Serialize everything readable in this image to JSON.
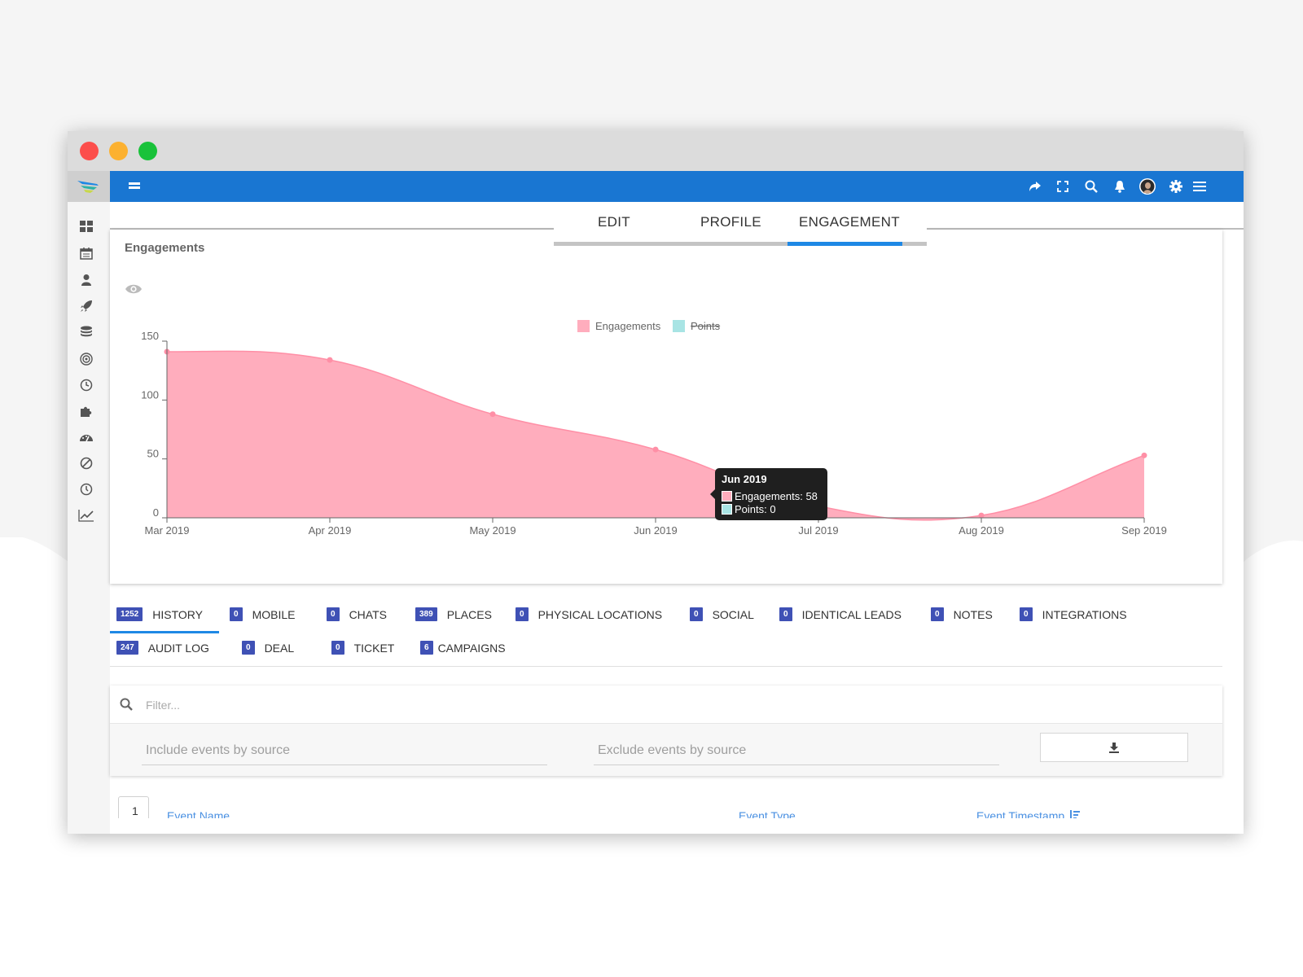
{
  "window": {
    "controls": [
      "close",
      "minimize",
      "maximize"
    ]
  },
  "colors": {
    "topbar": "#1976d2",
    "accent": "#1e88e5",
    "badge": "#3f51b5",
    "engagements": "#ffadbd",
    "engagements_line": "#ff8fa6",
    "points": "#a8e4e4"
  },
  "sidebar": {
    "logo_icon": "mautic-logo-icon",
    "items": [
      "dashboard-icon",
      "calendar-icon",
      "contacts-icon",
      "campaigns-rocket-icon",
      "stack-icon",
      "target-icon",
      "clock-icon",
      "plugins-puzzle-icon",
      "gauge-icon",
      "ban-icon",
      "history-icon",
      "chart-line-icon"
    ]
  },
  "topbar": {
    "menu_icon": "hamburger-icon",
    "right_icons": [
      "share-icon",
      "fullscreen-icon",
      "search-icon",
      "bell-icon",
      "avatar",
      "gear-icon",
      "menu-icon"
    ]
  },
  "tabs": [
    {
      "label": "EDIT"
    },
    {
      "label": "PROFILE"
    },
    {
      "label": "ENGAGEMENT",
      "active": true
    }
  ],
  "chart_card": {
    "title": "Engagements",
    "toggle_icon": "eye-icon"
  },
  "chart_data": {
    "type": "area",
    "title": "",
    "x": [
      "Mar 2019",
      "Apr 2019",
      "May 2019",
      "Jun 2019",
      "Jul 2019",
      "Aug 2019",
      "Sep 2019"
    ],
    "series": [
      {
        "name": "Engagements",
        "values": [
          141,
          134,
          88,
          58,
          10,
          2,
          53
        ],
        "visible": true
      },
      {
        "name": "Points",
        "values": [
          0,
          0,
          0,
          0,
          0,
          0,
          0
        ],
        "visible": false
      }
    ],
    "yticks": [
      0,
      50,
      100,
      150
    ],
    "ylim": [
      0,
      150
    ],
    "legend": "top-center",
    "grid": false,
    "tooltip": {
      "title": "Jun 2019",
      "rows": [
        "Engagements: 58",
        "Points: 0"
      ]
    }
  },
  "subtabs": [
    {
      "count": "1252",
      "label": "HISTORY",
      "active": true
    },
    {
      "count": "0",
      "label": "MOBILE"
    },
    {
      "count": "0",
      "label": "CHATS"
    },
    {
      "count": "389",
      "label": "PLACES"
    },
    {
      "count": "0",
      "label": "PHYSICAL LOCATIONS"
    },
    {
      "count": "0",
      "label": "SOCIAL"
    },
    {
      "count": "0",
      "label": "IDENTICAL LEADS"
    },
    {
      "count": "0",
      "label": "NOTES"
    },
    {
      "count": "0",
      "label": "INTEGRATIONS"
    },
    {
      "count": "247",
      "label": "AUDIT LOG"
    },
    {
      "count": "0",
      "label": "DEAL"
    },
    {
      "count": "0",
      "label": "TICKET"
    },
    {
      "count": "6",
      "label": "CAMPAIGNS"
    }
  ],
  "filter": {
    "placeholder": "Filter...",
    "include_placeholder": "Include events by source",
    "exclude_placeholder": "Exclude events by source",
    "download_icon": "download-icon"
  },
  "table": {
    "checkbox_label": "1",
    "columns": [
      "Event Name",
      "Event Type",
      "Event Timestamp"
    ],
    "sort_icon": "sort-icon"
  }
}
